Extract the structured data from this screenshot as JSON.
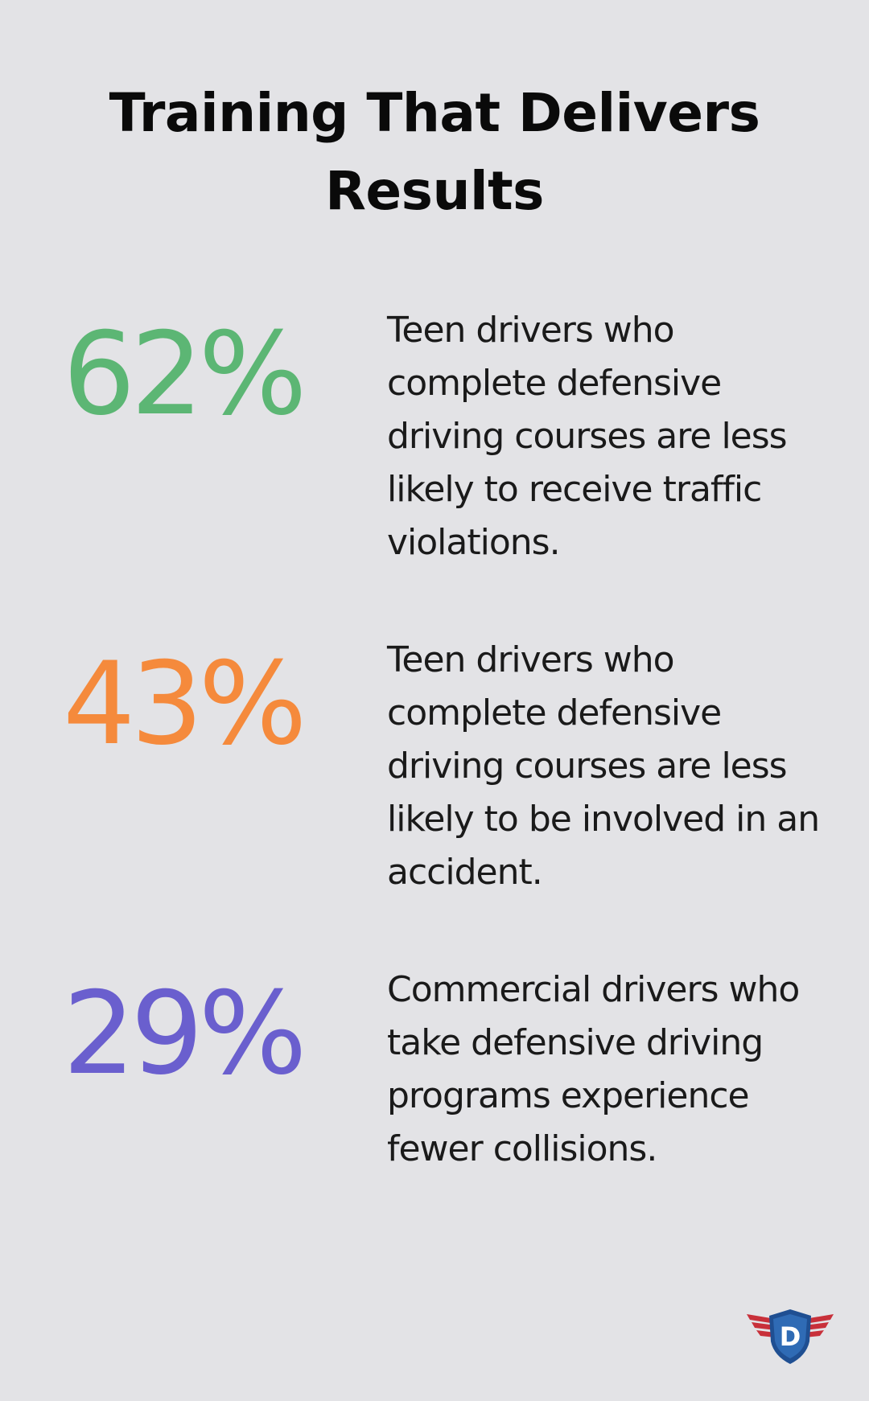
{
  "title": "Training That Delivers Results",
  "stats": [
    {
      "value": "62%",
      "color": "#5cb674",
      "text": "Teen drivers who complete defensive driving courses are less likely to receive traffic violations."
    },
    {
      "value": "43%",
      "color": "#f58a3c",
      "text": "Teen drivers who complete defensive driving courses are less likely to be involved in an accident."
    },
    {
      "value": "29%",
      "color": "#6a5fce",
      "text": "Commercial drivers who take defensive driving programs experience fewer collisions."
    }
  ],
  "logo": {
    "icon": "winged-shield-logo-icon",
    "letter": "D",
    "colors": {
      "wings": "#c8303a",
      "shield": "#1f4f92",
      "shield_inner": "#2f6bb5"
    }
  }
}
